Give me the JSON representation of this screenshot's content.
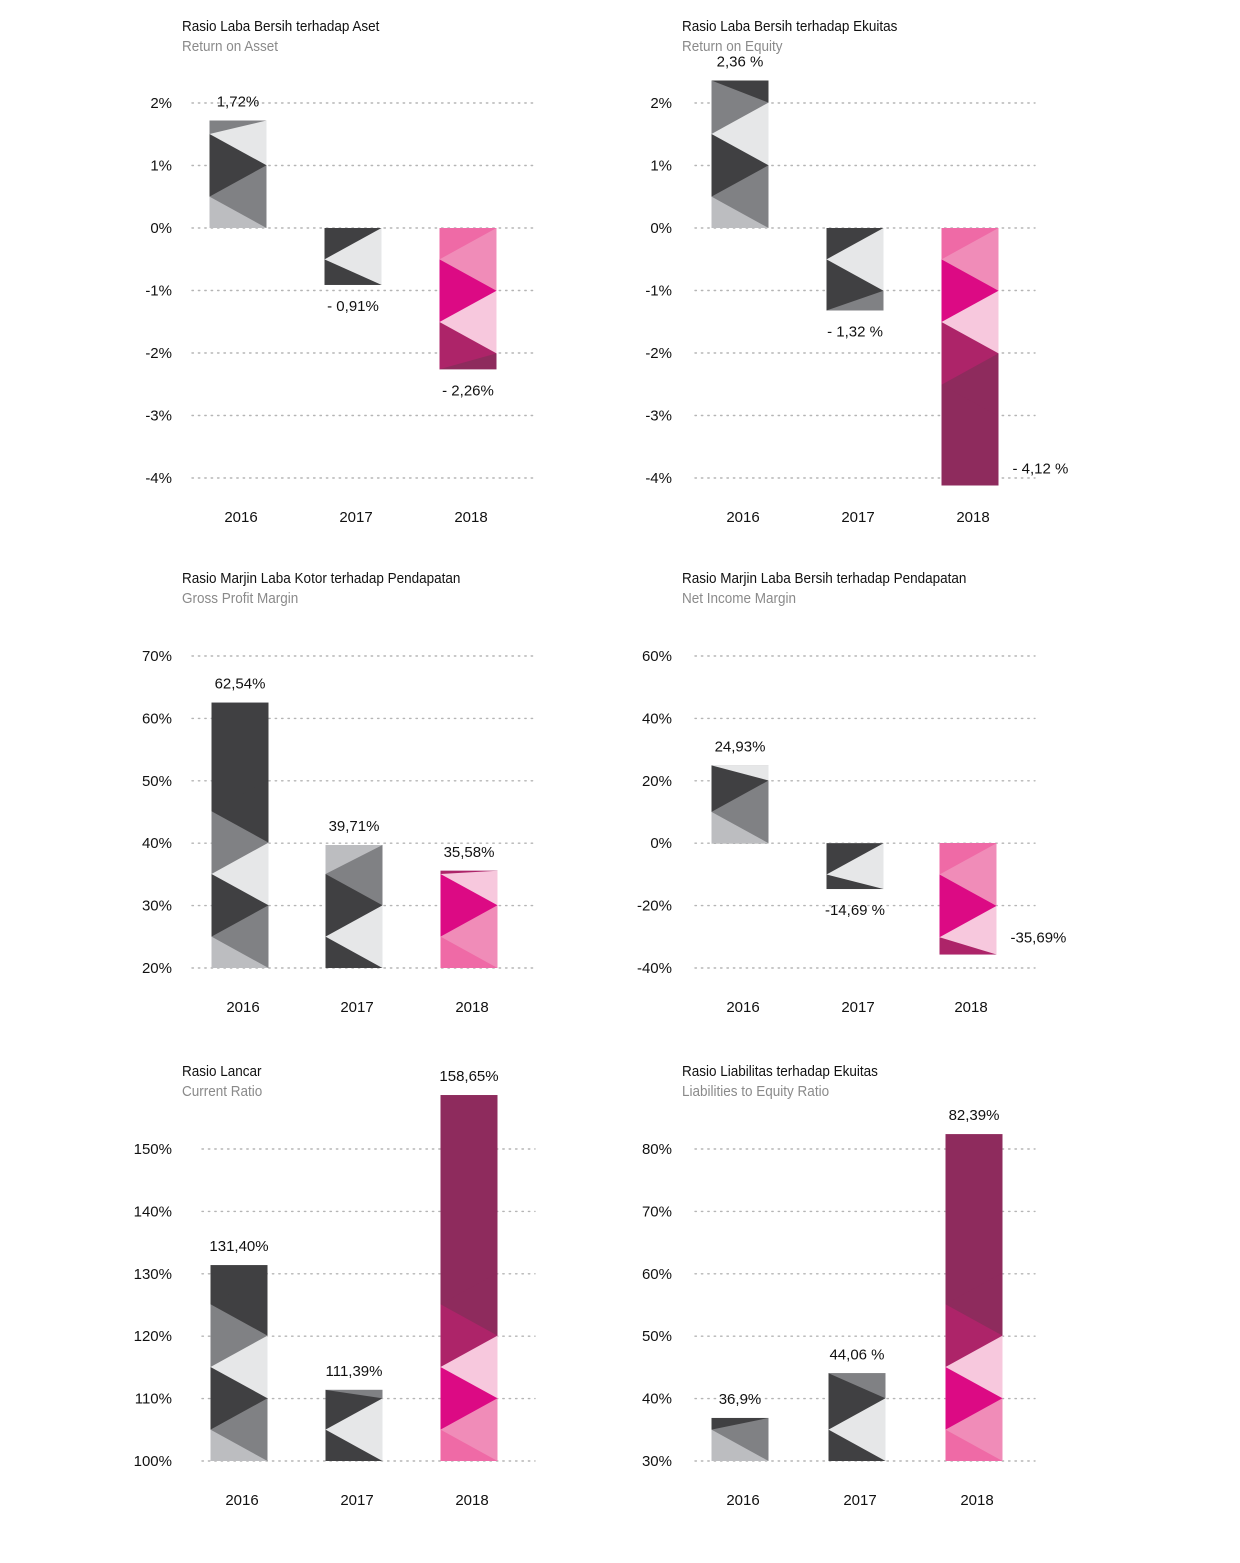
{
  "palette": {
    "dark": "#404042",
    "mid": "#808184",
    "light": "#bcbdc0",
    "pale": "#e6e7e8",
    "pink_hot": "#ef6aa6",
    "pink_soft": "#f08cb8",
    "magenta": "#dc0a84",
    "pink_pale": "#f7c8dd",
    "berry": "#ad2469",
    "plum": "#8e2b5d"
  },
  "chart_data": [
    {
      "type": "bar",
      "title": "Rasio Laba Bersih terhadap Aset",
      "subtitle": "Return on Asset",
      "categories": [
        "2016",
        "2017",
        "2018"
      ],
      "values": [
        1.72,
        -0.91,
        -2.26
      ],
      "value_labels": [
        "1,72%",
        "- 0,91%",
        "- 2,26%"
      ],
      "yticks": [
        2,
        1,
        0,
        -1,
        -2,
        -3,
        -4
      ],
      "ytick_labels": [
        "2%",
        "1%",
        "0%",
        "-1%",
        "-2%",
        "-3%",
        "-4%"
      ],
      "ylim": [
        -4.2,
        2.4
      ],
      "baseline": 0,
      "grid": true,
      "xlabel": "",
      "ylabel": ""
    },
    {
      "type": "bar",
      "title": "Rasio Laba Bersih terhadap Ekuitas",
      "subtitle": "Return on Equity",
      "categories": [
        "2016",
        "2017",
        "2018"
      ],
      "values": [
        2.36,
        -1.32,
        -4.12
      ],
      "value_labels": [
        "2,36 %",
        "- 1,32 %",
        "- 4,12 %"
      ],
      "yticks": [
        2,
        1,
        0,
        -1,
        -2,
        -3,
        -4
      ],
      "ytick_labels": [
        "2%",
        "1%",
        "0%",
        "-1%",
        "-2%",
        "-3%",
        "-4%"
      ],
      "ylim": [
        -4.2,
        2.4
      ],
      "baseline": 0,
      "grid": true,
      "xlabel": "",
      "ylabel": ""
    },
    {
      "type": "bar",
      "title": "Rasio Marjin Laba Kotor terhadap Pendapatan",
      "subtitle": "Gross Profit Margin",
      "categories": [
        "2016",
        "2017",
        "2018"
      ],
      "values": [
        62.54,
        39.71,
        35.58
      ],
      "value_labels": [
        "62,54%",
        "39,71%",
        "35,58%"
      ],
      "yticks": [
        70,
        60,
        50,
        40,
        30,
        20
      ],
      "ytick_labels": [
        "70%",
        "60%",
        "50%",
        "40%",
        "30%",
        "20%"
      ],
      "ylim": [
        20,
        70
      ],
      "baseline": 20,
      "grid": true,
      "xlabel": "",
      "ylabel": ""
    },
    {
      "type": "bar",
      "title": "Rasio Marjin Laba Bersih terhadap Pendapatan",
      "subtitle": "Net Income Margin",
      "categories": [
        "2016",
        "2017",
        "2018"
      ],
      "values": [
        24.93,
        -14.69,
        -35.69
      ],
      "value_labels": [
        "24,93%",
        "-14,69 %",
        "-35,69%"
      ],
      "yticks": [
        60,
        40,
        20,
        0,
        -20,
        -40
      ],
      "ytick_labels": [
        "60%",
        "40%",
        "20%",
        "0%",
        "-20%",
        "-40%"
      ],
      "ylim": [
        -40,
        60
      ],
      "baseline": 0,
      "grid": true,
      "xlabel": "",
      "ylabel": ""
    },
    {
      "type": "bar",
      "title": "Rasio Lancar",
      "subtitle": "Current Ratio",
      "categories": [
        "2016",
        "2017",
        "2018"
      ],
      "values": [
        131.4,
        111.39,
        158.65
      ],
      "value_labels": [
        "131,40%",
        "111,39%",
        "158,65%"
      ],
      "yticks": [
        150,
        140,
        130,
        120,
        110,
        100
      ],
      "ytick_labels": [
        "150%",
        "140%",
        "130%",
        "120%",
        "110%",
        "100%"
      ],
      "ylim": [
        100,
        160
      ],
      "baseline": 100,
      "grid": true,
      "xlabel": "",
      "ylabel": ""
    },
    {
      "type": "bar",
      "title": "Rasio Liabilitas terhadap Ekuitas",
      "subtitle": "Liabilities to Equity Ratio",
      "categories": [
        "2016",
        "2017",
        "2018"
      ],
      "values": [
        36.9,
        44.06,
        82.39
      ],
      "value_labels": [
        "36,9%",
        "44,06 %",
        "82,39%"
      ],
      "yticks": [
        80,
        70,
        60,
        50,
        40,
        30
      ],
      "ytick_labels": [
        "80%",
        "70%",
        "60%",
        "50%",
        "40%",
        "30%"
      ],
      "ylim": [
        30,
        85
      ],
      "baseline": 30,
      "grid": true,
      "xlabel": "",
      "ylabel": ""
    }
  ]
}
